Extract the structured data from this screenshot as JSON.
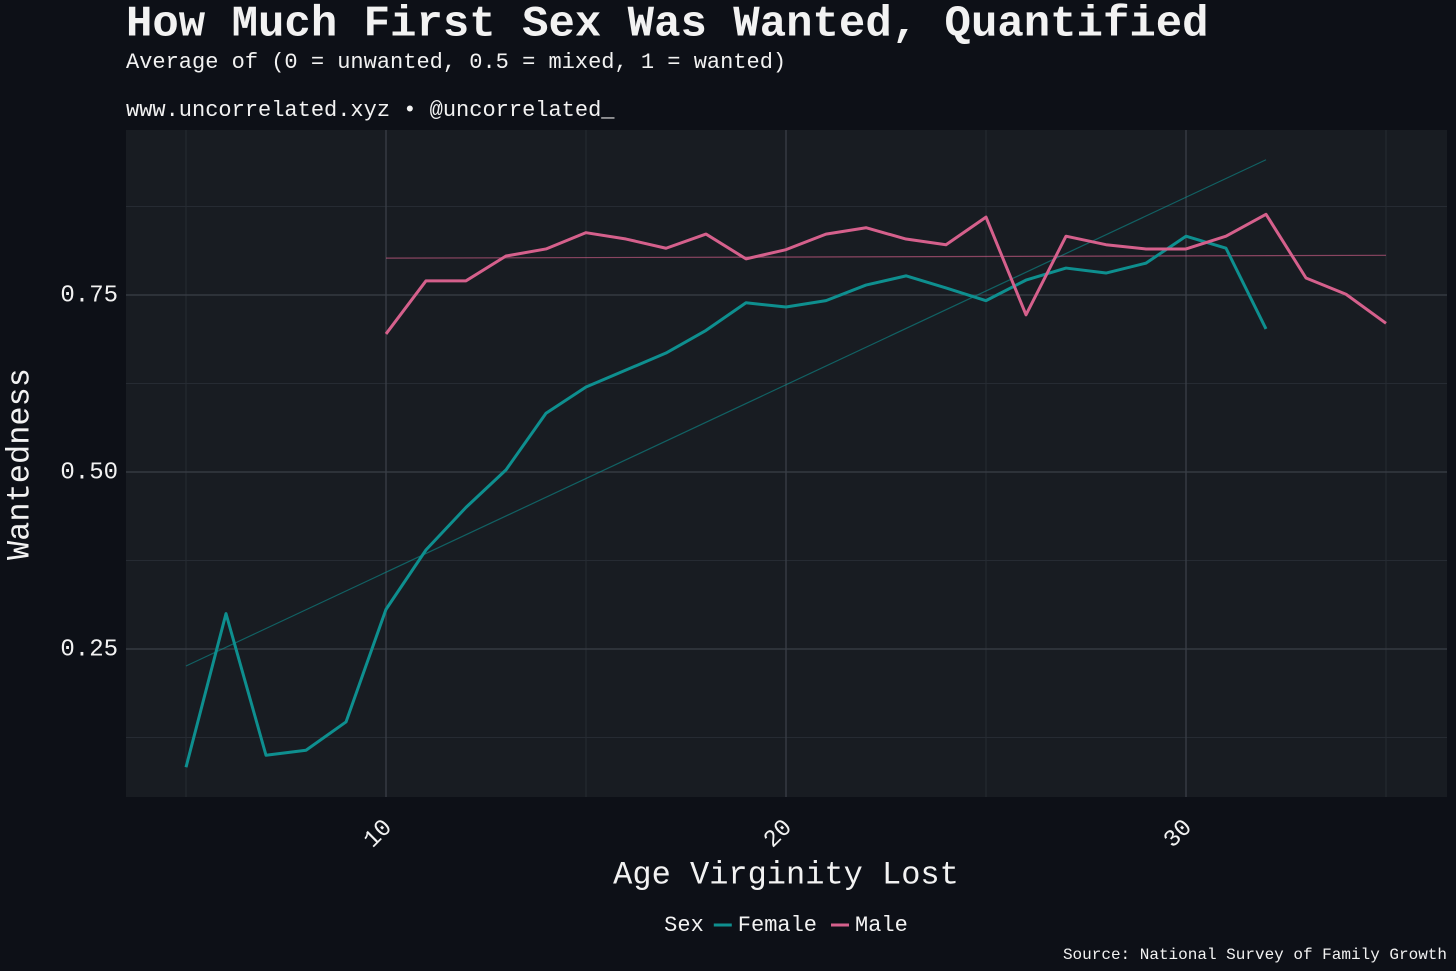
{
  "chart_data": {
    "type": "line",
    "title": "How Much First Sex Was Wanted, Quantified",
    "subtitle": "Average of (0 = unwanted, 0.5 = mixed, 1 = wanted)",
    "credit": "www.uncorrelated.xyz • @uncorrelated_",
    "x_label": "Age Virginity Lost",
    "y_label": "Wantedness",
    "legend_title": "Sex",
    "caption": "Source: National Survey of Family Growth",
    "xlim": [
      3.5,
      36.525
    ],
    "ylim": [
      0.041,
      0.983
    ],
    "xticks": [
      10,
      20,
      30
    ],
    "yticks": [
      0.25,
      {
        "value": 0.5,
        "label": "0.50"
      },
      0.75
    ],
    "x_minor_grid": [
      5,
      15,
      25,
      35
    ],
    "y_minor_grid": [
      0.125,
      0.375,
      0.625,
      0.875
    ],
    "grid": true,
    "legend_position": "bottom",
    "series": [
      {
        "name": "Female",
        "color": "#0e8f8f",
        "x": [
          5,
          6,
          7,
          8,
          9,
          10,
          11,
          12,
          13,
          14,
          15,
          16,
          17,
          18,
          19,
          20,
          21,
          22,
          23,
          24,
          25,
          26,
          27,
          28,
          29,
          30,
          31,
          32
        ],
        "values": [
          0.083,
          0.3,
          0.1,
          0.107,
          0.147,
          0.306,
          0.39,
          0.45,
          0.503,
          0.583,
          0.62,
          0.644,
          0.668,
          0.7,
          0.739,
          0.733,
          0.742,
          0.764,
          0.777,
          0.76,
          0.742,
          0.771,
          0.788,
          0.781,
          0.795,
          0.833,
          0.816,
          0.702
        ],
        "trend": {
          "x": [
            5,
            32
          ],
          "values": [
            0.226,
            0.941
          ]
        }
      },
      {
        "name": "Male",
        "color": "#d5608c",
        "x": [
          10,
          11,
          12,
          13,
          14,
          15,
          16,
          17,
          18,
          19,
          20,
          21,
          22,
          23,
          24,
          25,
          26,
          27,
          28,
          29,
          30,
          31,
          32,
          33,
          34,
          35
        ],
        "values": [
          0.695,
          0.77,
          0.77,
          0.805,
          0.815,
          0.838,
          0.829,
          0.816,
          0.836,
          0.801,
          0.814,
          0.836,
          0.845,
          0.829,
          0.821,
          0.86,
          0.722,
          0.833,
          0.821,
          0.815,
          0.815,
          0.833,
          0.864,
          0.774,
          0.751,
          0.71
        ],
        "trend": {
          "x": [
            10,
            35
          ],
          "values": [
            0.802,
            0.806
          ]
        }
      }
    ]
  }
}
